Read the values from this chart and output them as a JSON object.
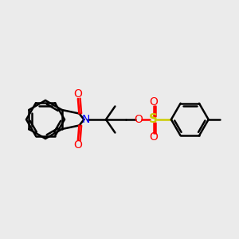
{
  "bg_color": "#ebebeb",
  "bond_color": "#000000",
  "nitrogen_color": "#0000ff",
  "oxygen_color": "#ff0000",
  "sulfur_color": "#cccc00",
  "line_width": 1.8,
  "fs": 10,
  "xlim": [
    0,
    10
  ],
  "ylim": [
    0,
    10
  ]
}
